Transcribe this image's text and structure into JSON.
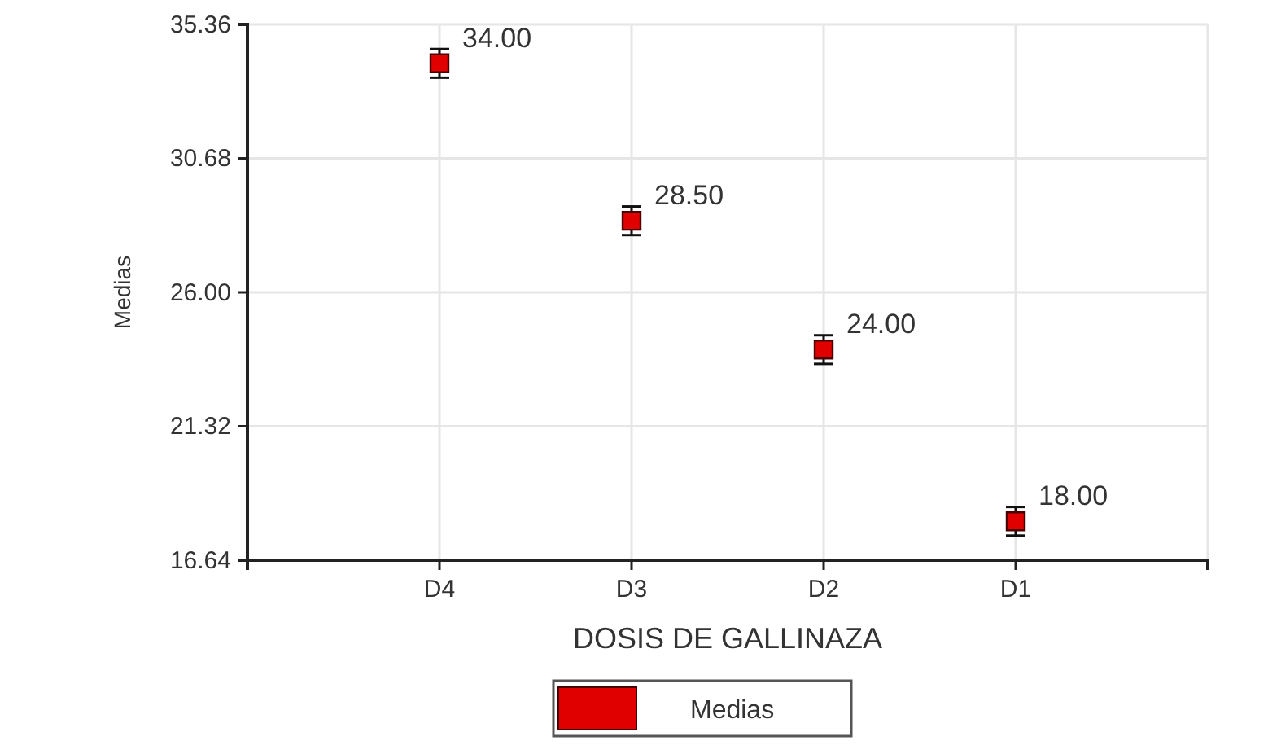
{
  "chart_data": {
    "type": "scatter",
    "xlabel": "DOSIS DE GALLINAZA",
    "ylabel": "Medias",
    "categories": [
      "D4",
      "D3",
      "D2",
      "D1"
    ],
    "series": [
      {
        "name": "Medias",
        "color": "#e00000",
        "values": [
          34.0,
          28.5,
          24.0,
          18.0
        ],
        "errors": [
          0.5,
          0.5,
          0.5,
          0.5
        ],
        "value_labels": [
          "34.00",
          "28.50",
          "24.00",
          "18.00"
        ]
      }
    ],
    "ylim": [
      16.64,
      35.36
    ],
    "yticks": [
      16.64,
      21.32,
      {
        "value": 26,
        "label": "26.00"
      },
      30.68,
      35.36
    ],
    "grid": true,
    "legend": "bottom",
    "marker": "square"
  }
}
